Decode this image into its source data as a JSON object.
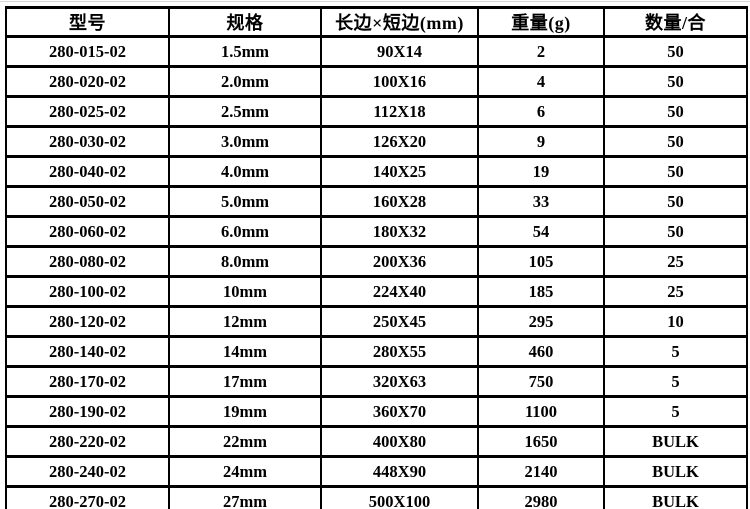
{
  "table": {
    "column_keys": [
      "model",
      "spec",
      "dimensions",
      "weight",
      "qty"
    ],
    "headers": [
      "型号",
      "规格",
      "长边×短边(mm)",
      "重量(g)",
      "数量/合"
    ],
    "rows": [
      [
        "280-015-02",
        "1.5mm",
        "90X14",
        "2",
        "50"
      ],
      [
        "280-020-02",
        "2.0mm",
        "100X16",
        "4",
        "50"
      ],
      [
        "280-025-02",
        "2.5mm",
        "112X18",
        "6",
        "50"
      ],
      [
        "280-030-02",
        "3.0mm",
        "126X20",
        "9",
        "50"
      ],
      [
        "280-040-02",
        "4.0mm",
        "140X25",
        "19",
        "50"
      ],
      [
        "280-050-02",
        "5.0mm",
        "160X28",
        "33",
        "50"
      ],
      [
        "280-060-02",
        "6.0mm",
        "180X32",
        "54",
        "50"
      ],
      [
        "280-080-02",
        "8.0mm",
        "200X36",
        "105",
        "25"
      ],
      [
        "280-100-02",
        "10mm",
        "224X40",
        "185",
        "25"
      ],
      [
        "280-120-02",
        "12mm",
        "250X45",
        "295",
        "10"
      ],
      [
        "280-140-02",
        "14mm",
        "280X55",
        "460",
        "5"
      ],
      [
        "280-170-02",
        "17mm",
        "320X63",
        "750",
        "5"
      ],
      [
        "280-190-02",
        "19mm",
        "360X70",
        "1100",
        "5"
      ],
      [
        "280-220-02",
        "22mm",
        "400X80",
        "1650",
        "BULK"
      ],
      [
        "280-240-02",
        "24mm",
        "448X90",
        "2140",
        "BULK"
      ],
      [
        "280-270-02",
        "27mm",
        "500X100",
        "2980",
        "BULK"
      ]
    ],
    "border_color": "#000000",
    "text_color": "#000000",
    "background_color": "#ffffff"
  }
}
